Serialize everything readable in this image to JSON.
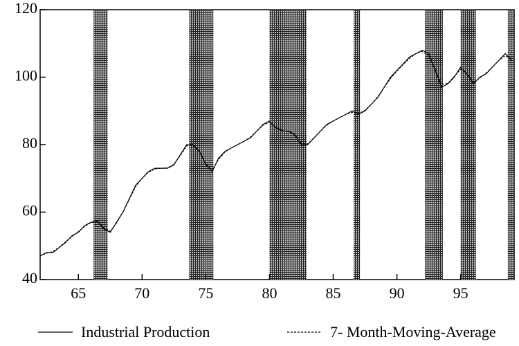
{
  "chart_data": {
    "type": "line",
    "xlim": [
      62,
      99.2
    ],
    "ylim": [
      40,
      120
    ],
    "xticks": [
      65,
      70,
      75,
      80,
      85,
      90,
      95
    ],
    "yticks": [
      40,
      60,
      80,
      100,
      120
    ],
    "shaded_periods": [
      [
        66.2,
        67.3
      ],
      [
        73.7,
        75.6
      ],
      [
        80.0,
        82.9
      ],
      [
        86.6,
        87.1
      ],
      [
        92.2,
        93.6
      ],
      [
        95.0,
        96.2
      ],
      [
        98.7,
        99.2
      ]
    ],
    "x": [
      62,
      62.5,
      63,
      63.5,
      64,
      64.5,
      65,
      65.5,
      66,
      66.5,
      67,
      67.5,
      68,
      68.5,
      69,
      69.5,
      70,
      70.5,
      71,
      71.5,
      72,
      72.5,
      73,
      73.5,
      74,
      74.5,
      75,
      75.5,
      76,
      76.5,
      77,
      77.5,
      78,
      78.5,
      79,
      79.5,
      80,
      80.5,
      81,
      81.5,
      82,
      82.5,
      83,
      83.5,
      84,
      84.5,
      85,
      85.5,
      86,
      86.5,
      87,
      87.5,
      88,
      88.5,
      89,
      89.5,
      90,
      90.5,
      91,
      91.5,
      92,
      92.5,
      93,
      93.5,
      94,
      94.5,
      95,
      95.5,
      96,
      96.5,
      97,
      97.5,
      98,
      98.5,
      99
    ],
    "series": [
      {
        "name": "Industrial Production",
        "color": "#000000",
        "dash": false,
        "values": [
          47,
          48,
          48,
          49.5,
          51,
          53,
          54,
          56,
          57,
          57.5,
          55,
          54,
          57,
          60,
          64,
          68,
          70,
          72,
          73,
          73,
          73,
          74,
          77,
          80,
          80,
          78,
          74,
          72,
          76,
          78,
          79,
          80,
          81,
          82,
          84,
          86,
          87,
          85,
          84,
          84,
          83,
          80,
          80,
          82,
          84,
          86,
          87,
          88,
          89,
          90,
          89,
          90,
          92,
          94,
          97,
          100,
          102,
          104,
          106,
          107,
          108,
          107,
          102,
          97,
          98,
          100,
          103,
          101,
          98,
          100,
          101,
          103,
          105,
          107,
          105
        ]
      },
      {
        "name": "7- Month-Moving-Average",
        "color": "#000000",
        "dash": true,
        "values": [
          47,
          47.8,
          48.3,
          49.6,
          51.2,
          52.8,
          54.2,
          55.8,
          56.9,
          57.2,
          55.4,
          54.3,
          56.8,
          60,
          63.8,
          67.6,
          70,
          71.8,
          72.8,
          73,
          73.1,
          74.2,
          76.8,
          79.6,
          79.8,
          78,
          74.4,
          72.4,
          75.6,
          77.8,
          79,
          80,
          81,
          82.2,
          84,
          85.8,
          86.6,
          85.2,
          84.2,
          83.8,
          82.6,
          80.4,
          80.2,
          82,
          84,
          85.8,
          87,
          88,
          89,
          89.6,
          89.2,
          90.2,
          92,
          94.2,
          97,
          99.6,
          101.8,
          103.8,
          105.6,
          107,
          107.6,
          106.4,
          102.4,
          97.8,
          98.2,
          100.2,
          102.4,
          101,
          98.4,
          99.8,
          101.2,
          103,
          105,
          106.4,
          105.4
        ]
      }
    ]
  }
}
